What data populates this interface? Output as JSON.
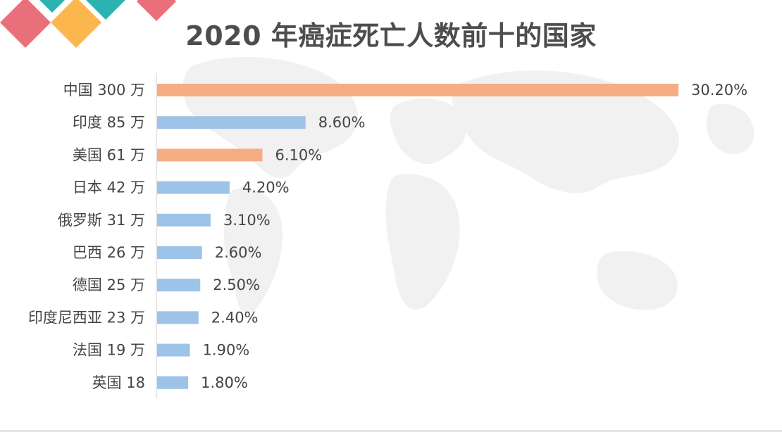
{
  "chart_data": {
    "type": "bar",
    "orientation": "horizontal",
    "title": "2020 年癌症死亡人数前十的国家",
    "categories": [
      "中国 300 万",
      "印度 85 万",
      "美国 61 万",
      "日本 42 万",
      "俄罗斯 31 万",
      "巴西 26 万",
      "德国 25 万",
      "印度尼西亚 23 万",
      "法国 19 万",
      "英国 18"
    ],
    "values": [
      30.2,
      8.6,
      6.1,
      4.2,
      3.1,
      2.6,
      2.5,
      2.4,
      1.9,
      1.8
    ],
    "value_labels": [
      "30.20%",
      "8.60%",
      "6.10%",
      "4.20%",
      "3.10%",
      "2.60%",
      "2.50%",
      "2.40%",
      "1.90%",
      "1.80%"
    ],
    "xlim": [
      0,
      30.2
    ],
    "grid": false,
    "colors": {
      "highlight": "#f7ad83",
      "default": "#9ec3e8",
      "axis": "#d0d0d0",
      "text": "#444444",
      "title": "#4d4d4d"
    },
    "highlight_indices": [
      0,
      2
    ]
  },
  "decor": {
    "colors": [
      "#e9707a",
      "#2bb3b1",
      "#fbb64e",
      "#2bb3b1",
      "#e9707a"
    ]
  }
}
